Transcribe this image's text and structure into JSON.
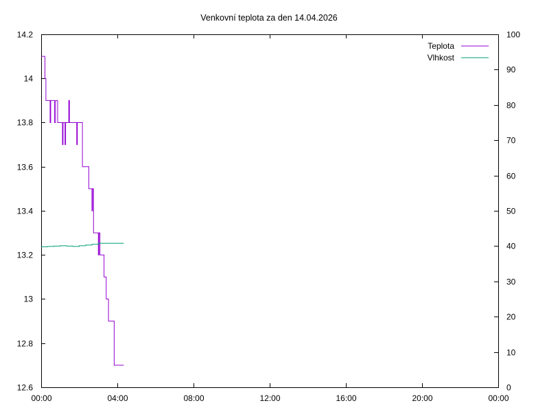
{
  "chart_data": {
    "type": "line",
    "title": "Venkovní teplota za den 14.04.2026",
    "x_ticks": [
      "00:00",
      "04:00",
      "08:00",
      "12:00",
      "16:00",
      "20:00",
      "00:00"
    ],
    "x_range_hours": [
      0,
      24
    ],
    "y_left": {
      "range": [
        12.6,
        14.2
      ],
      "ticks": [
        "12.6",
        "12.8",
        "13",
        "13.2",
        "13.4",
        "13.6",
        "13.8",
        "14",
        "14.2"
      ]
    },
    "y_right": {
      "range": [
        0,
        100
      ],
      "ticks": [
        "0",
        "10",
        "20",
        "30",
        "40",
        "50",
        "60",
        "70",
        "80",
        "90",
        "100"
      ]
    },
    "grid": false,
    "legend_position": "top-right",
    "series": [
      {
        "name": "Teplota",
        "axis": "left",
        "color": "#9400d3",
        "points": [
          [
            "00:00",
            14.1
          ],
          [
            "00:10",
            14.1
          ],
          [
            "00:12",
            14.0
          ],
          [
            "00:15",
            13.9
          ],
          [
            "00:25",
            13.9
          ],
          [
            "00:28",
            13.8
          ],
          [
            "00:30",
            13.9
          ],
          [
            "00:40",
            13.9
          ],
          [
            "00:42",
            13.8
          ],
          [
            "00:45",
            13.9
          ],
          [
            "00:50",
            13.9
          ],
          [
            "00:52",
            13.8
          ],
          [
            "01:05",
            13.8
          ],
          [
            "01:07",
            13.7
          ],
          [
            "01:09",
            13.8
          ],
          [
            "01:13",
            13.8
          ],
          [
            "01:15",
            13.7
          ],
          [
            "01:17",
            13.8
          ],
          [
            "01:25",
            13.8
          ],
          [
            "01:27",
            13.9
          ],
          [
            "01:29",
            13.8
          ],
          [
            "01:50",
            13.8
          ],
          [
            "01:52",
            13.7
          ],
          [
            "01:54",
            13.8
          ],
          [
            "02:05",
            13.8
          ],
          [
            "02:10",
            13.6
          ],
          [
            "02:25",
            13.6
          ],
          [
            "02:30",
            13.5
          ],
          [
            "02:38",
            13.5
          ],
          [
            "02:40",
            13.4
          ],
          [
            "02:42",
            13.5
          ],
          [
            "02:45",
            13.3
          ],
          [
            "02:55",
            13.3
          ],
          [
            "03:00",
            13.2
          ],
          [
            "03:02",
            13.3
          ],
          [
            "03:05",
            13.2
          ],
          [
            "03:15",
            13.2
          ],
          [
            "03:18",
            13.1
          ],
          [
            "03:22",
            13.1
          ],
          [
            "03:25",
            13.0
          ],
          [
            "03:28",
            13.0
          ],
          [
            "03:32",
            12.9
          ],
          [
            "03:45",
            12.9
          ],
          [
            "03:50",
            12.7
          ],
          [
            "04:20",
            12.7
          ]
        ]
      },
      {
        "name": "Vlhkost",
        "axis": "right",
        "color": "#009e73",
        "points": [
          [
            "00:00",
            39.8
          ],
          [
            "00:20",
            39.9
          ],
          [
            "00:40",
            40.0
          ],
          [
            "01:00",
            40.1
          ],
          [
            "01:20",
            40.0
          ],
          [
            "01:40",
            39.9
          ],
          [
            "02:00",
            40.1
          ],
          [
            "02:20",
            40.3
          ],
          [
            "02:40",
            40.5
          ],
          [
            "03:00",
            40.8
          ],
          [
            "03:20",
            40.8
          ],
          [
            "03:40",
            40.8
          ],
          [
            "04:00",
            40.8
          ],
          [
            "04:20",
            40.8
          ]
        ]
      }
    ]
  }
}
